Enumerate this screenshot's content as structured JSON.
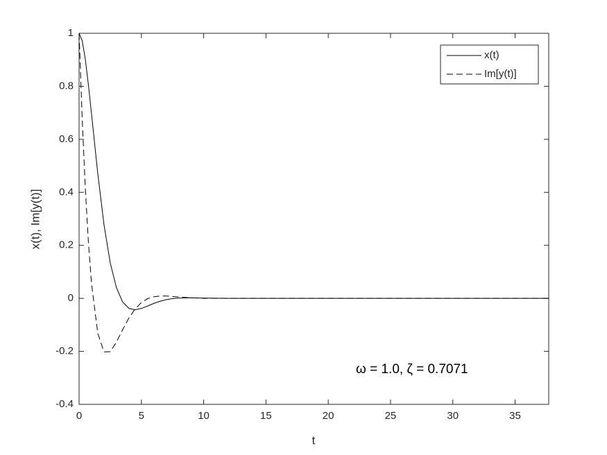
{
  "chart_data": {
    "type": "line",
    "x": [
      0,
      0.25,
      0.5,
      0.75,
      1,
      1.5,
      2,
      2.5,
      3,
      3.5,
      4,
      4.5,
      5,
      5.5,
      6,
      6.5,
      7,
      7.5,
      8,
      9,
      10,
      12,
      15,
      20,
      25,
      30,
      35,
      37.7
    ],
    "series": [
      {
        "name": "x(t)",
        "color": "#000000",
        "linestyle": "solid",
        "values": [
          1,
          0.972,
          0.902,
          0.805,
          0.695,
          0.471,
          0.278,
          0.134,
          0.04,
          -0.014,
          -0.038,
          -0.043,
          -0.038,
          -0.029,
          -0.019,
          -0.011,
          -0.005,
          -0.001,
          0.001,
          0.002,
          0.001,
          0,
          0,
          0,
          0,
          0,
          0,
          0
        ]
      },
      {
        "name": "Im[y(t)]",
        "color": "#000000",
        "linestyle": "dashed",
        "values": [
          1,
          0.678,
          0.416,
          0.21,
          0.055,
          -0.132,
          -0.202,
          -0.201,
          -0.165,
          -0.118,
          -0.074,
          -0.04,
          -0.016,
          -0.001,
          0.006,
          0.009,
          0.009,
          0.007,
          0.005,
          0.002,
          0,
          0,
          0,
          0,
          0,
          0,
          0,
          0
        ]
      }
    ],
    "xlabel": "t",
    "ylabel": "x(t), Im[y(t)]",
    "annotation": "ω = 1.0, ζ = 0.7071",
    "xlim": [
      0,
      37.7
    ],
    "ylim": [
      -0.4,
      1
    ],
    "xticks": [
      0,
      5,
      10,
      15,
      20,
      25,
      30,
      35
    ],
    "yticks": [
      -0.4,
      -0.2,
      0,
      0.2,
      0.4,
      0.6,
      0.8,
      1
    ],
    "legend": "upper right"
  }
}
